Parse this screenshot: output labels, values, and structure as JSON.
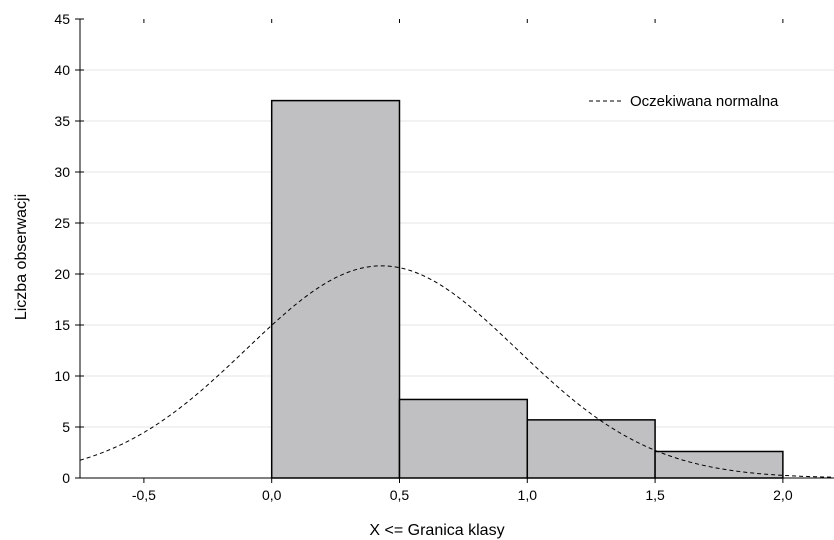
{
  "chart_data": {
    "type": "bar",
    "title": "",
    "xlabel": "X <= Granica klasy",
    "ylabel": "Liczba obserwacji",
    "xlim": [
      -0.75,
      2.2
    ],
    "ylim": [
      0,
      45
    ],
    "x_ticks": [
      -0.5,
      0.0,
      0.5,
      1.0,
      1.5,
      2.0
    ],
    "x_tick_labels": [
      "-0,5",
      "0,0",
      "0,5",
      "1,0",
      "1,5",
      "2,0"
    ],
    "y_ticks": [
      0,
      5,
      10,
      15,
      20,
      25,
      30,
      35,
      40,
      45
    ],
    "y_tick_labels": [
      "0",
      "5",
      "10",
      "15",
      "20",
      "25",
      "30",
      "35",
      "40",
      "45"
    ],
    "bins": [
      {
        "x0": 0.0,
        "x1": 0.5,
        "count": 37
      },
      {
        "x0": 0.5,
        "x1": 1.0,
        "count": 7.7
      },
      {
        "x0": 1.0,
        "x1": 1.5,
        "count": 5.7
      },
      {
        "x0": 1.5,
        "x1": 2.0,
        "count": 2.6
      }
    ],
    "series": [
      {
        "name": "Oczekiwana normalna",
        "style": "dashed",
        "mean": 0.43,
        "sd": 0.53,
        "peak": 20.8
      }
    ],
    "grid": true,
    "legend_position": "top-right",
    "colors": {
      "bar_fill": "#c0bfc1",
      "bar_stroke": "#000000",
      "curve": "#000000",
      "grid": "#e6e6e6"
    }
  }
}
